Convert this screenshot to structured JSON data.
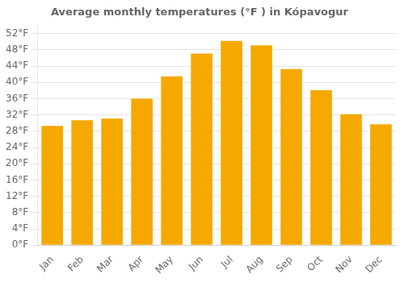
{
  "chart_data": {
    "type": "bar",
    "title": "Average monthly temperatures (°F ) in Kópavogur",
    "categories": [
      "Jan",
      "Feb",
      "Mar",
      "Apr",
      "May",
      "Jun",
      "Jul",
      "Aug",
      "Sep",
      "Oct",
      "Nov",
      "Dec"
    ],
    "values": [
      29.3,
      30.7,
      31.1,
      36.0,
      41.5,
      47.1,
      50.2,
      49.1,
      43.3,
      38.1,
      32.2,
      29.7
    ],
    "color": "#F5A800",
    "ylim": [
      0,
      54
    ],
    "yticks": [
      {
        "value": 0,
        "label": "0°F"
      },
      {
        "value": 4,
        "label": "4°F"
      },
      {
        "value": 8,
        "label": "8°F"
      },
      {
        "value": 12,
        "label": "12°F"
      },
      {
        "value": 16,
        "label": "16°F"
      },
      {
        "value": 20,
        "label": "20°F"
      },
      {
        "value": 24,
        "label": "24°F"
      },
      {
        "value": 28,
        "label": "28°F"
      },
      {
        "value": 32,
        "label": "32°F"
      },
      {
        "value": 36,
        "label": "36°F"
      },
      {
        "value": 40,
        "label": "40°F"
      },
      {
        "value": 44,
        "label": "44°F"
      },
      {
        "value": 48,
        "label": "48°F"
      },
      {
        "value": 52,
        "label": "52°F"
      }
    ],
    "grid": true
  }
}
